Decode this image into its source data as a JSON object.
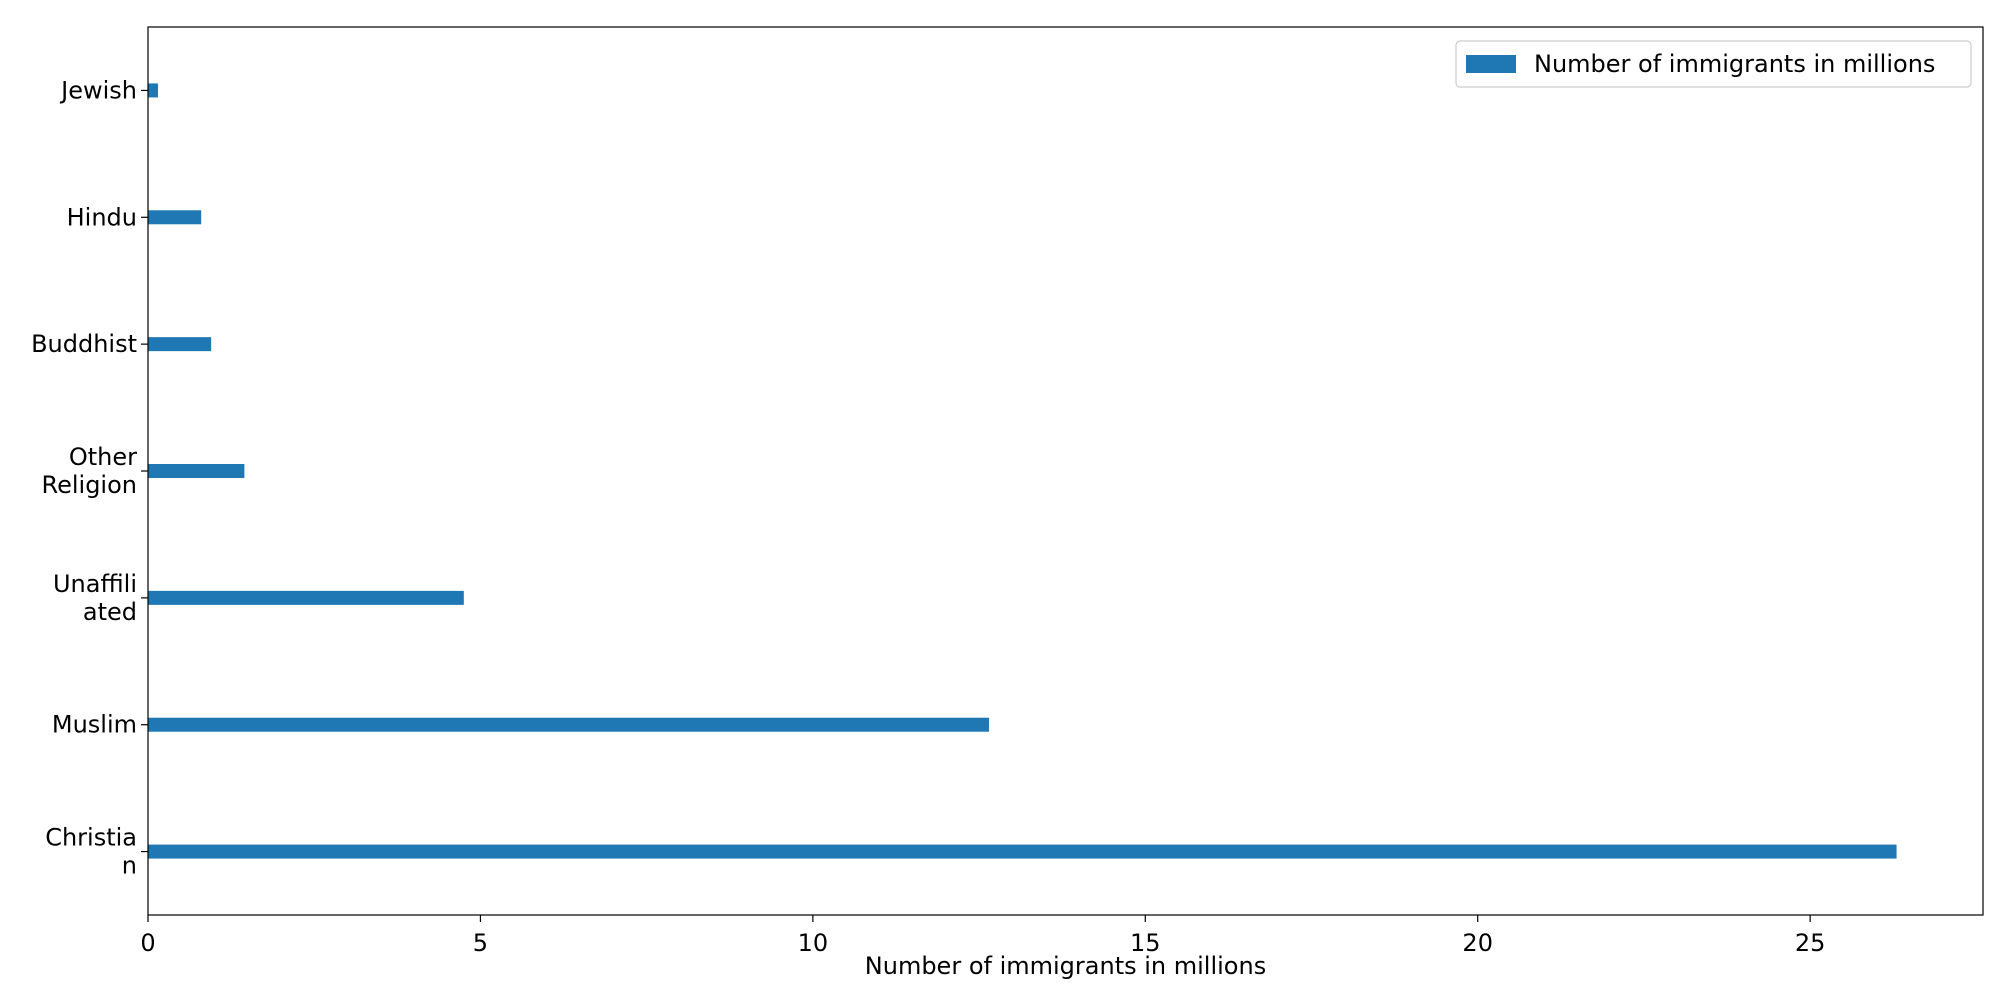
{
  "chart_data": {
    "type": "bar",
    "orientation": "horizontal",
    "categories": [
      [
        "Christia",
        "n"
      ],
      [
        "Muslim"
      ],
      [
        "Unaffili",
        "ated"
      ],
      [
        "Other",
        "Religion"
      ],
      [
        "Buddhist"
      ],
      [
        "Hindu"
      ],
      [
        "Jewish"
      ]
    ],
    "series": [
      {
        "name": "Number of immigrants in millions",
        "values": [
          26.3,
          12.65,
          4.75,
          1.45,
          0.95,
          0.8,
          0.15
        ]
      }
    ],
    "xlabel": "Number of immigrants in millions",
    "ylabel": "",
    "xlim": [
      0,
      27.6
    ],
    "xticks": [
      0,
      5,
      10,
      15,
      20,
      25
    ],
    "grid": false,
    "legend": "top-right",
    "colors": {
      "bar": "#1f77b4",
      "axis": "#000000",
      "legend_border": "#cccccc"
    }
  }
}
